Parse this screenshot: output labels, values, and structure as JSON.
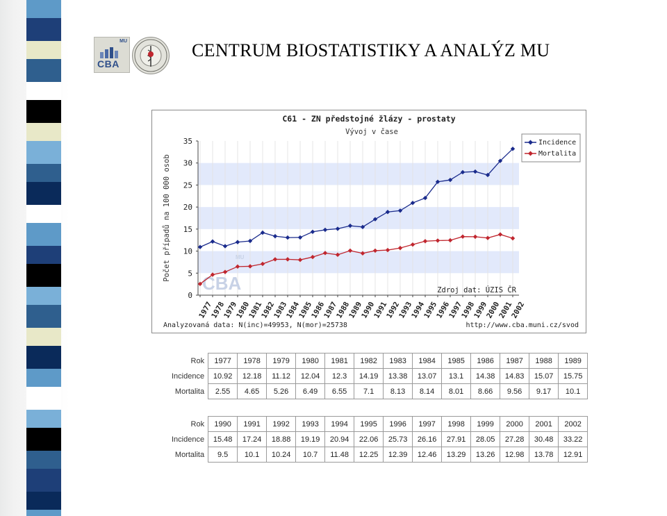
{
  "header": {
    "title": "CENTRUM BIOSTATISTIKY A ANALÝZ MU"
  },
  "logos": {
    "cba_text": "CBA",
    "cba_small": "MU"
  },
  "colors": {
    "incidence": "#1a2b8c",
    "mortalita": "#c0262e",
    "band": "#e2e9fb",
    "stripe_palette": [
      "#2f5f8e",
      "#ffffff",
      "#1e3f78",
      "#5e9ac8",
      "#000000",
      "#e8e8c8",
      "#7ab0d8",
      "#0a2a5a"
    ]
  },
  "chart_data": {
    "type": "line",
    "title": "C61 - ZN předstojné žlázy - prostaty",
    "subtitle": "Vývoj v čase",
    "ylabel": "Počet případů na 100 000 osob",
    "xlabel": "",
    "ylim": [
      0,
      35
    ],
    "yticks": [
      0,
      5,
      10,
      15,
      20,
      25,
      30,
      35
    ],
    "grid": true,
    "legend_position": "top-right",
    "categories": [
      "1977",
      "1978",
      "1979",
      "1980",
      "1981",
      "1982",
      "1983",
      "1984",
      "1985",
      "1986",
      "1987",
      "1988",
      "1989",
      "1990",
      "1991",
      "1992",
      "1993",
      "1994",
      "1995",
      "1996",
      "1997",
      "1998",
      "1999",
      "2000",
      "2001",
      "2002"
    ],
    "series": [
      {
        "name": "Incidence",
        "values": [
          10.92,
          12.18,
          11.12,
          12.04,
          12.3,
          14.19,
          13.38,
          13.07,
          13.1,
          14.38,
          14.83,
          15.07,
          15.75,
          15.48,
          17.24,
          18.88,
          19.19,
          20.94,
          22.06,
          25.73,
          26.16,
          27.91,
          28.05,
          27.28,
          30.48,
          33.22
        ]
      },
      {
        "name": "Mortalita",
        "values": [
          2.55,
          4.65,
          5.26,
          6.49,
          6.55,
          7.1,
          8.13,
          8.14,
          8.01,
          8.66,
          9.56,
          9.17,
          10.1,
          9.5,
          10.1,
          10.24,
          10.7,
          11.48,
          12.25,
          12.39,
          12.46,
          13.29,
          13.26,
          12.98,
          13.78,
          12.91
        ]
      }
    ],
    "annotations": {
      "source": "Zdroj dat: ÚZIS ČR",
      "footer_left": "Analyzovaná data: N(inc)=49953, N(mor)=25738",
      "footer_right": "http://www.cba.muni.cz/svod",
      "watermark": "CBA",
      "watermark_small": "MU"
    }
  },
  "tables": [
    {
      "headers": [
        "Rok",
        "Incidence",
        "Mortalita"
      ],
      "rows": [
        [
          "1977",
          "1978",
          "1979",
          "1980",
          "1981",
          "1982",
          "1983",
          "1984",
          "1985",
          "1986",
          "1987",
          "1988",
          "1989"
        ],
        [
          "10.92",
          "12.18",
          "11.12",
          "12.04",
          "12.3",
          "14.19",
          "13.38",
          "13.07",
          "13.1",
          "14.38",
          "14.83",
          "15.07",
          "15.75"
        ],
        [
          "2.55",
          "4.65",
          "5.26",
          "6.49",
          "6.55",
          "7.1",
          "8.13",
          "8.14",
          "8.01",
          "8.66",
          "9.56",
          "9.17",
          "10.1"
        ]
      ]
    },
    {
      "headers": [
        "Rok",
        "Incidence",
        "Mortalita"
      ],
      "rows": [
        [
          "1990",
          "1991",
          "1992",
          "1993",
          "1994",
          "1995",
          "1996",
          "1997",
          "1998",
          "1999",
          "2000",
          "2001",
          "2002"
        ],
        [
          "15.48",
          "17.24",
          "18.88",
          "19.19",
          "20.94",
          "22.06",
          "25.73",
          "26.16",
          "27.91",
          "28.05",
          "27.28",
          "30.48",
          "33.22"
        ],
        [
          "9.5",
          "10.1",
          "10.24",
          "10.7",
          "11.48",
          "12.25",
          "12.39",
          "12.46",
          "13.29",
          "13.26",
          "12.98",
          "13.78",
          "12.91"
        ]
      ]
    }
  ]
}
